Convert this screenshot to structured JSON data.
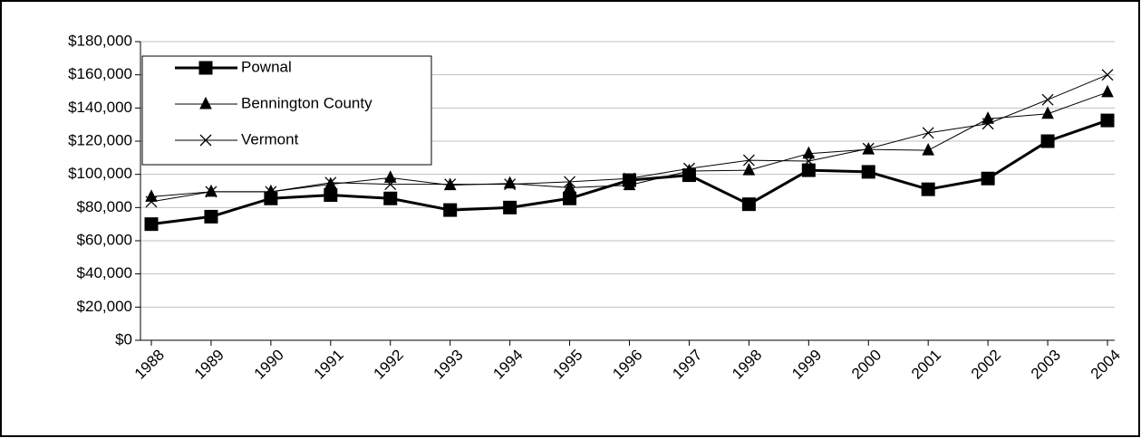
{
  "chart_data": {
    "type": "line",
    "x": [
      "1988",
      "1989",
      "1990",
      "1991",
      "1992",
      "1993",
      "1994",
      "1995",
      "1996",
      "1997",
      "1998",
      "1999",
      "2000",
      "2001",
      "2002",
      "2003",
      "2004"
    ],
    "series": [
      {
        "name": "Pownal",
        "color": "#000000",
        "marker": "square",
        "line_width": 3,
        "values": [
          70000,
          74500,
          85500,
          87500,
          85500,
          78500,
          80000,
          85500,
          96500,
          99500,
          82000,
          102500,
          101500,
          91000,
          97500,
          120000,
          132500
        ]
      },
      {
        "name": "Bennington County",
        "color": "#000000",
        "marker": "triangle",
        "line_width": 1,
        "values": [
          86500,
          89500,
          89500,
          94000,
          98000,
          93500,
          94500,
          92000,
          93500,
          102000,
          102500,
          112500,
          115000,
          114500,
          133500,
          136500,
          149500
        ]
      },
      {
        "name": "Vermont",
        "color": "#000000",
        "marker": "x",
        "line_width": 1,
        "values": [
          83500,
          89500,
          89500,
          95000,
          94000,
          94000,
          94000,
          95500,
          97500,
          103500,
          108500,
          108000,
          115500,
          125000,
          130500,
          145000,
          160000
        ]
      }
    ],
    "ylim": [
      0,
      180000
    ],
    "yticks": [
      {
        "value": 0,
        "label": "$0"
      },
      {
        "value": 20000,
        "label": "$20,000"
      },
      {
        "value": 40000,
        "label": "$40,000"
      },
      {
        "value": 60000,
        "label": "$60,000"
      },
      {
        "value": 80000,
        "label": "$80,000"
      },
      {
        "value": 100000,
        "label": "$100,000"
      },
      {
        "value": 120000,
        "label": "$120,000"
      },
      {
        "value": 140000,
        "label": "$140,000"
      },
      {
        "value": 160000,
        "label": "$160,000"
      },
      {
        "value": 180000,
        "label": "$180,000"
      }
    ],
    "grid": true,
    "legend": "top-left"
  }
}
